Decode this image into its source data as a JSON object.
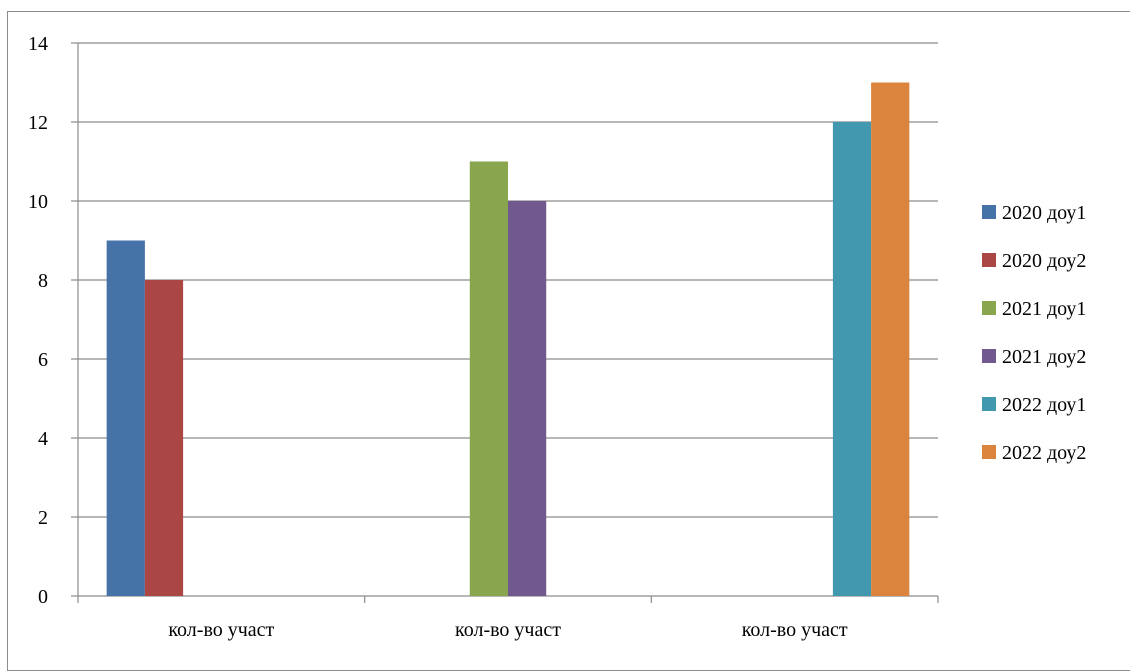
{
  "chart_data": {
    "type": "bar",
    "categories": [
      "кол-во участ",
      "кол-во участ",
      "кол-во участ"
    ],
    "series": [
      {
        "name": "2020 доу1",
        "color": "#4572a7",
        "values": [
          9,
          null,
          null
        ]
      },
      {
        "name": "2020 доу2",
        "color": "#aa4643",
        "values": [
          8,
          null,
          null
        ]
      },
      {
        "name": "2021 доу1",
        "color": "#89a54e",
        "values": [
          null,
          11,
          null
        ]
      },
      {
        "name": "2021 доу2",
        "color": "#71588f",
        "values": [
          null,
          10,
          null
        ]
      },
      {
        "name": "2022 доу1",
        "color": "#4198af",
        "values": [
          null,
          null,
          12
        ]
      },
      {
        "name": "2022 доу2",
        "color": "#db843d",
        "values": [
          null,
          null,
          13
        ]
      }
    ],
    "ylim": [
      0,
      14
    ],
    "yticks": [
      0,
      2,
      4,
      6,
      8,
      10,
      12,
      14
    ],
    "grid": true,
    "legend_position": "right",
    "title": "",
    "xlabel": "",
    "ylabel": ""
  }
}
